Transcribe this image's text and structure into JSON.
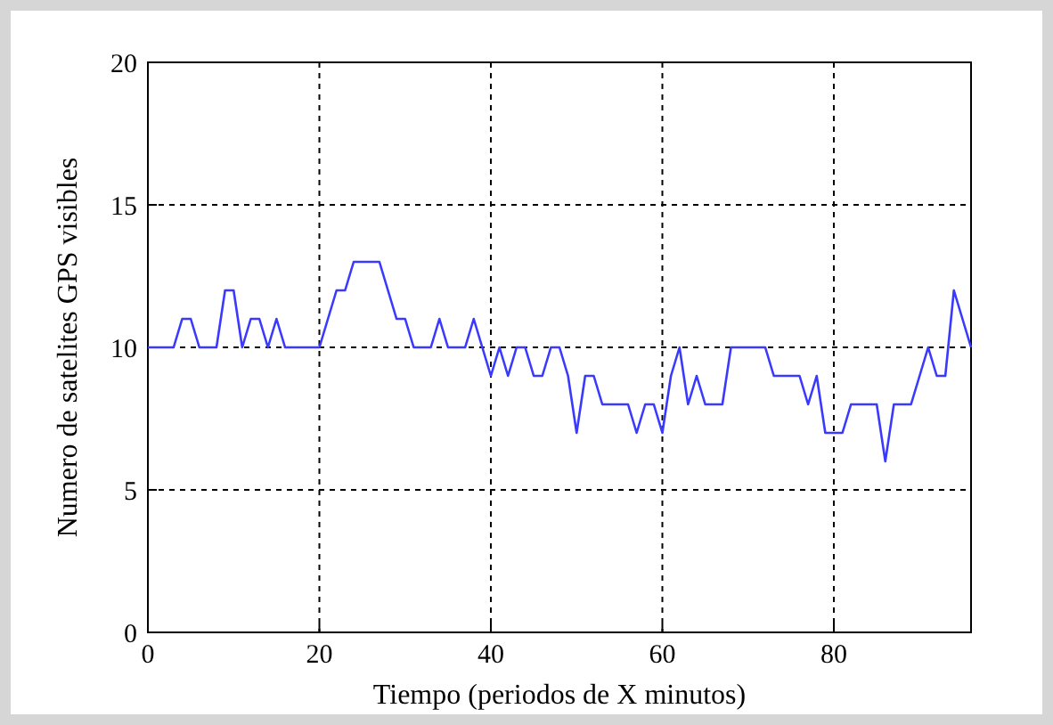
{
  "chart_data": {
    "type": "line",
    "xlabel": "Tiempo (periodos de X minutos)",
    "ylabel": "Numero de satelites GPS visibles",
    "x": [
      0,
      1,
      2,
      3,
      4,
      5,
      6,
      7,
      8,
      9,
      10,
      11,
      12,
      13,
      14,
      15,
      16,
      17,
      18,
      19,
      20,
      21,
      22,
      23,
      24,
      25,
      26,
      27,
      28,
      29,
      30,
      31,
      32,
      33,
      34,
      35,
      36,
      37,
      38,
      39,
      40,
      41,
      42,
      43,
      44,
      45,
      46,
      47,
      48,
      49,
      50,
      51,
      52,
      53,
      54,
      55,
      56,
      57,
      58,
      59,
      60,
      61,
      62,
      63,
      64,
      65,
      66,
      67,
      68,
      69,
      70,
      71,
      72,
      73,
      74,
      75,
      76,
      77,
      78,
      79,
      80,
      81,
      82,
      83,
      84,
      85,
      86,
      87,
      88,
      89,
      90,
      91,
      92,
      93,
      94,
      95,
      96
    ],
    "series": [
      {
        "color": "#3a3aff",
        "values": [
          10,
          10,
          10,
          10,
          11,
          11,
          10,
          10,
          10,
          12,
          12,
          10,
          11,
          11,
          10,
          11,
          10,
          10,
          10,
          10,
          10,
          11,
          12,
          12,
          13,
          13,
          13,
          13,
          12,
          11,
          11,
          10,
          10,
          10,
          11,
          10,
          10,
          10,
          11,
          10,
          9,
          10,
          9,
          10,
          10,
          9,
          9,
          10,
          10,
          9,
          7,
          9,
          9,
          8,
          8,
          8,
          8,
          7,
          8,
          8,
          7,
          9,
          10,
          8,
          9,
          8,
          8,
          8,
          10,
          10,
          10,
          10,
          10,
          9,
          9,
          9,
          9,
          8,
          9,
          7,
          7,
          7,
          8,
          8,
          8,
          8,
          6,
          8,
          8,
          8,
          9,
          10,
          9,
          9,
          12,
          11,
          10
        ]
      }
    ],
    "xlim": [
      0,
      96
    ],
    "xticks": [
      0,
      20,
      40,
      60,
      80
    ],
    "ylim": [
      0,
      20
    ],
    "yticks": [
      0,
      5,
      10,
      15,
      20
    ],
    "grid": true,
    "line_style": "solid",
    "marker": "none"
  }
}
